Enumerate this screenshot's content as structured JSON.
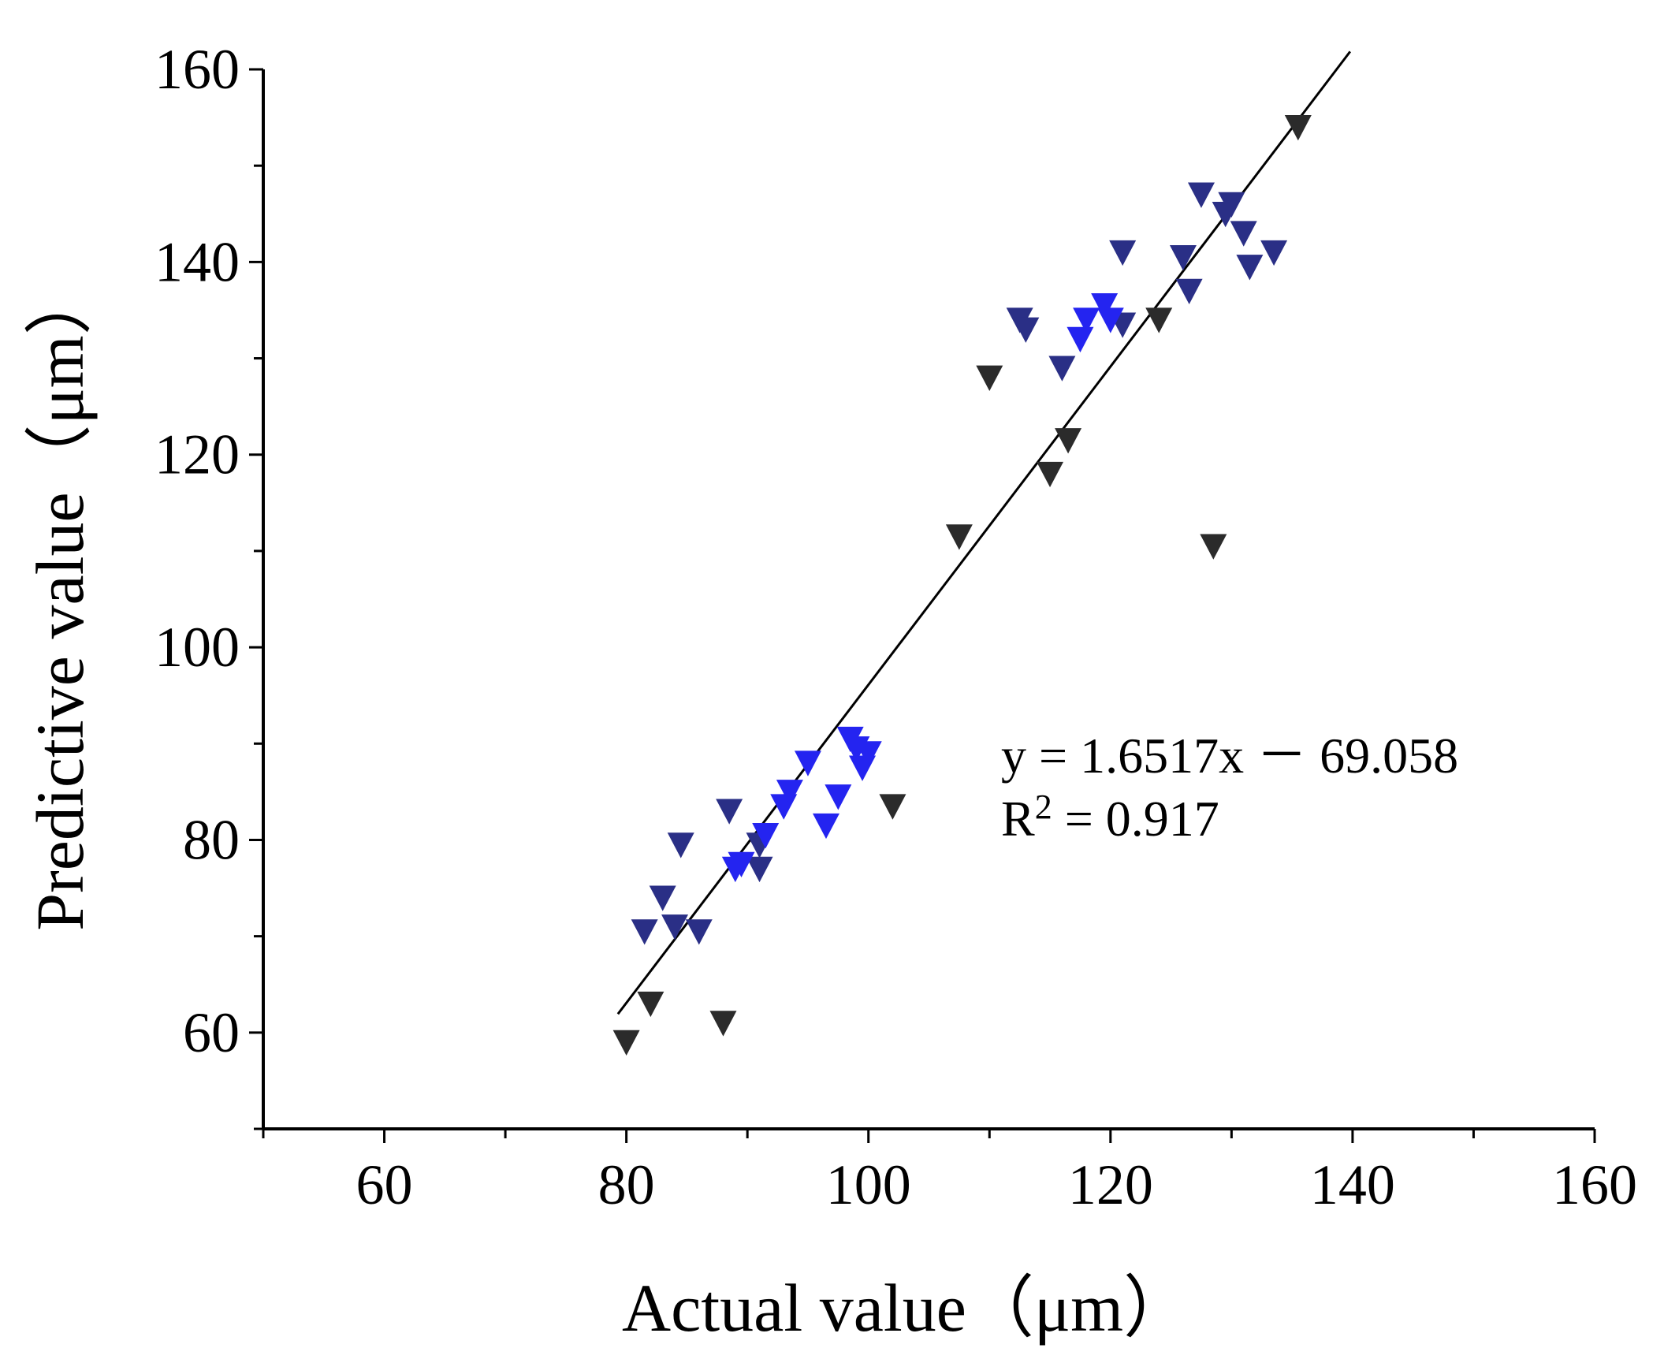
{
  "chart_data": {
    "type": "scatter",
    "title": "",
    "xlabel": "Actual value（μm）",
    "ylabel": "Predictive value（μm）",
    "xlim": [
      50,
      160
    ],
    "ylim": [
      50,
      160
    ],
    "x_ticks": [
      "60",
      "80",
      "100",
      "120",
      "140",
      "160"
    ],
    "y_ticks": [
      "60",
      "80",
      "100",
      "120",
      "140",
      "160"
    ],
    "marker": "down-triangle",
    "series": [
      {
        "name": "dark points",
        "color": "#2b2b2b",
        "points": [
          [
            80,
            59
          ],
          [
            82,
            63
          ],
          [
            88,
            61
          ],
          [
            102,
            83.5
          ],
          [
            107.5,
            111.5
          ],
          [
            110,
            128
          ],
          [
            115,
            118
          ],
          [
            116.5,
            121.5
          ],
          [
            124,
            134
          ],
          [
            128.5,
            110.5
          ],
          [
            135.5,
            154
          ]
        ]
      },
      {
        "name": "navy points",
        "color": "#2a2f86",
        "points": [
          [
            81.5,
            70.5
          ],
          [
            83,
            74
          ],
          [
            84,
            71
          ],
          [
            84.5,
            79.5
          ],
          [
            86,
            70.5
          ],
          [
            88.5,
            83
          ],
          [
            91,
            79.5
          ],
          [
            91,
            77
          ],
          [
            112.5,
            134
          ],
          [
            113,
            133
          ],
          [
            116,
            129
          ],
          [
            121,
            141
          ],
          [
            121,
            133.5
          ],
          [
            126,
            140.5
          ],
          [
            126.5,
            137
          ],
          [
            127.5,
            147
          ],
          [
            129.5,
            145
          ],
          [
            130,
            146
          ],
          [
            131,
            143
          ],
          [
            131.5,
            139.5
          ],
          [
            133.5,
            141
          ]
        ]
      },
      {
        "name": "blue points",
        "color": "#2424f0",
        "points": [
          [
            89,
            77
          ],
          [
            89.5,
            77.5
          ],
          [
            91.5,
            80.5
          ],
          [
            93,
            83.5
          ],
          [
            93.5,
            85
          ],
          [
            95,
            88
          ],
          [
            96.5,
            81.5
          ],
          [
            97.5,
            84.5
          ],
          [
            98.5,
            90.5
          ],
          [
            99,
            89.5
          ],
          [
            99.5,
            87.5
          ],
          [
            100,
            89
          ],
          [
            117.5,
            132
          ],
          [
            118,
            134
          ],
          [
            119.5,
            135.5
          ],
          [
            120,
            134
          ]
        ]
      }
    ],
    "fit_line": {
      "slope": 1.6517,
      "intercept": -69.058,
      "x_range": [
        79.3,
        139.8
      ],
      "color": "#000000"
    },
    "annotation": {
      "equation": "y = 1.6517x － 69.058",
      "r2_prefix": "R",
      "r2_sup": "2",
      "r2_rest": " = 0.917"
    }
  }
}
